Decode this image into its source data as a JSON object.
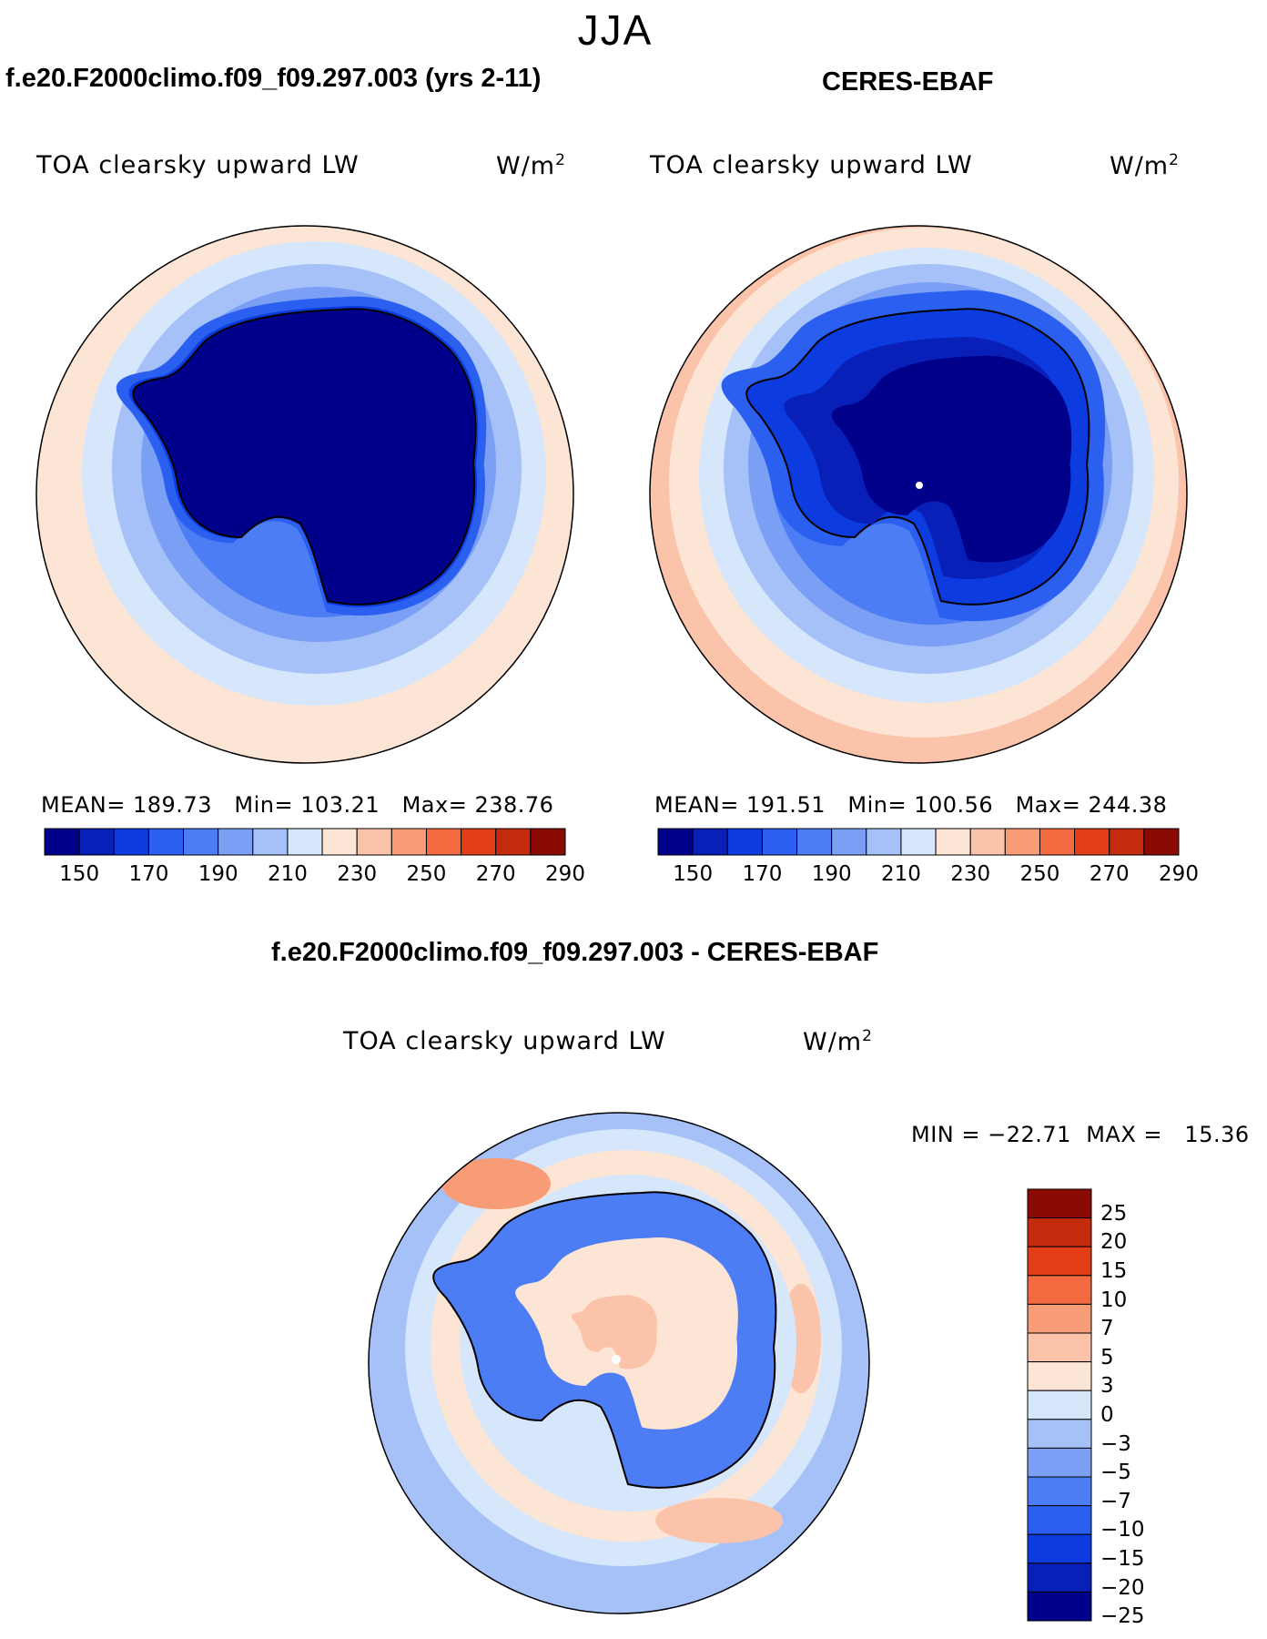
{
  "season": "JJA",
  "panels": [
    {
      "id": "model",
      "title": "f.e20.F2000climo.f09_f09.297.003 (yrs 2-11)",
      "label": "TOA clearsky upward LW",
      "units_base": "W/m",
      "units_exp": "2",
      "mean_label": "MEAN=",
      "mean": "189.73",
      "min_label": "Min=",
      "min": "103.21",
      "max_label": "Max=",
      "max": "238.76"
    },
    {
      "id": "obs",
      "title": "CERES-EBAF",
      "label": "TOA clearsky upward LW",
      "units_base": "W/m",
      "units_exp": "2",
      "mean_label": "MEAN=",
      "mean": "191.51",
      "min_label": "Min=",
      "min": "100.56",
      "max_label": "Max=",
      "max": "244.38"
    }
  ],
  "abs_colorbar": {
    "colors": [
      "#00008a",
      "#0820b8",
      "#0c3ce0",
      "#2a5ff0",
      "#4d7df4",
      "#7a9ff5",
      "#a6c1f8",
      "#d6e6fb",
      "#fde5d6",
      "#fbc4aa",
      "#f89c78",
      "#f36a40",
      "#e33e18",
      "#c42a0c",
      "#8a0a04"
    ],
    "tick_labels": [
      "150",
      "170",
      "190",
      "210",
      "230",
      "250",
      "270",
      "290"
    ]
  },
  "diff": {
    "title": "f.e20.F2000climo.f09_f09.297.003 - CERES-EBAF",
    "label": "TOA clearsky upward LW",
    "units_base": "W/m",
    "units_exp": "2",
    "min_label": "MIN =",
    "min": "−22.71",
    "max_label": "MAX =",
    "max": "15.36",
    "colors": [
      "#8a0a04",
      "#c42a0c",
      "#e33e18",
      "#f36a40",
      "#f89c78",
      "#fbc4aa",
      "#fde5d6",
      "#d6e6fb",
      "#a6c1f8",
      "#7a9ff5",
      "#4d7df4",
      "#2a5ff0",
      "#0c3ce0",
      "#0820b8",
      "#00008a"
    ],
    "tick_labels": [
      "25",
      "20",
      "15",
      "10",
      "7",
      "5",
      "3",
      "0",
      "−3",
      "−5",
      "−7",
      "−10",
      "−15",
      "−20",
      "−25"
    ]
  }
}
